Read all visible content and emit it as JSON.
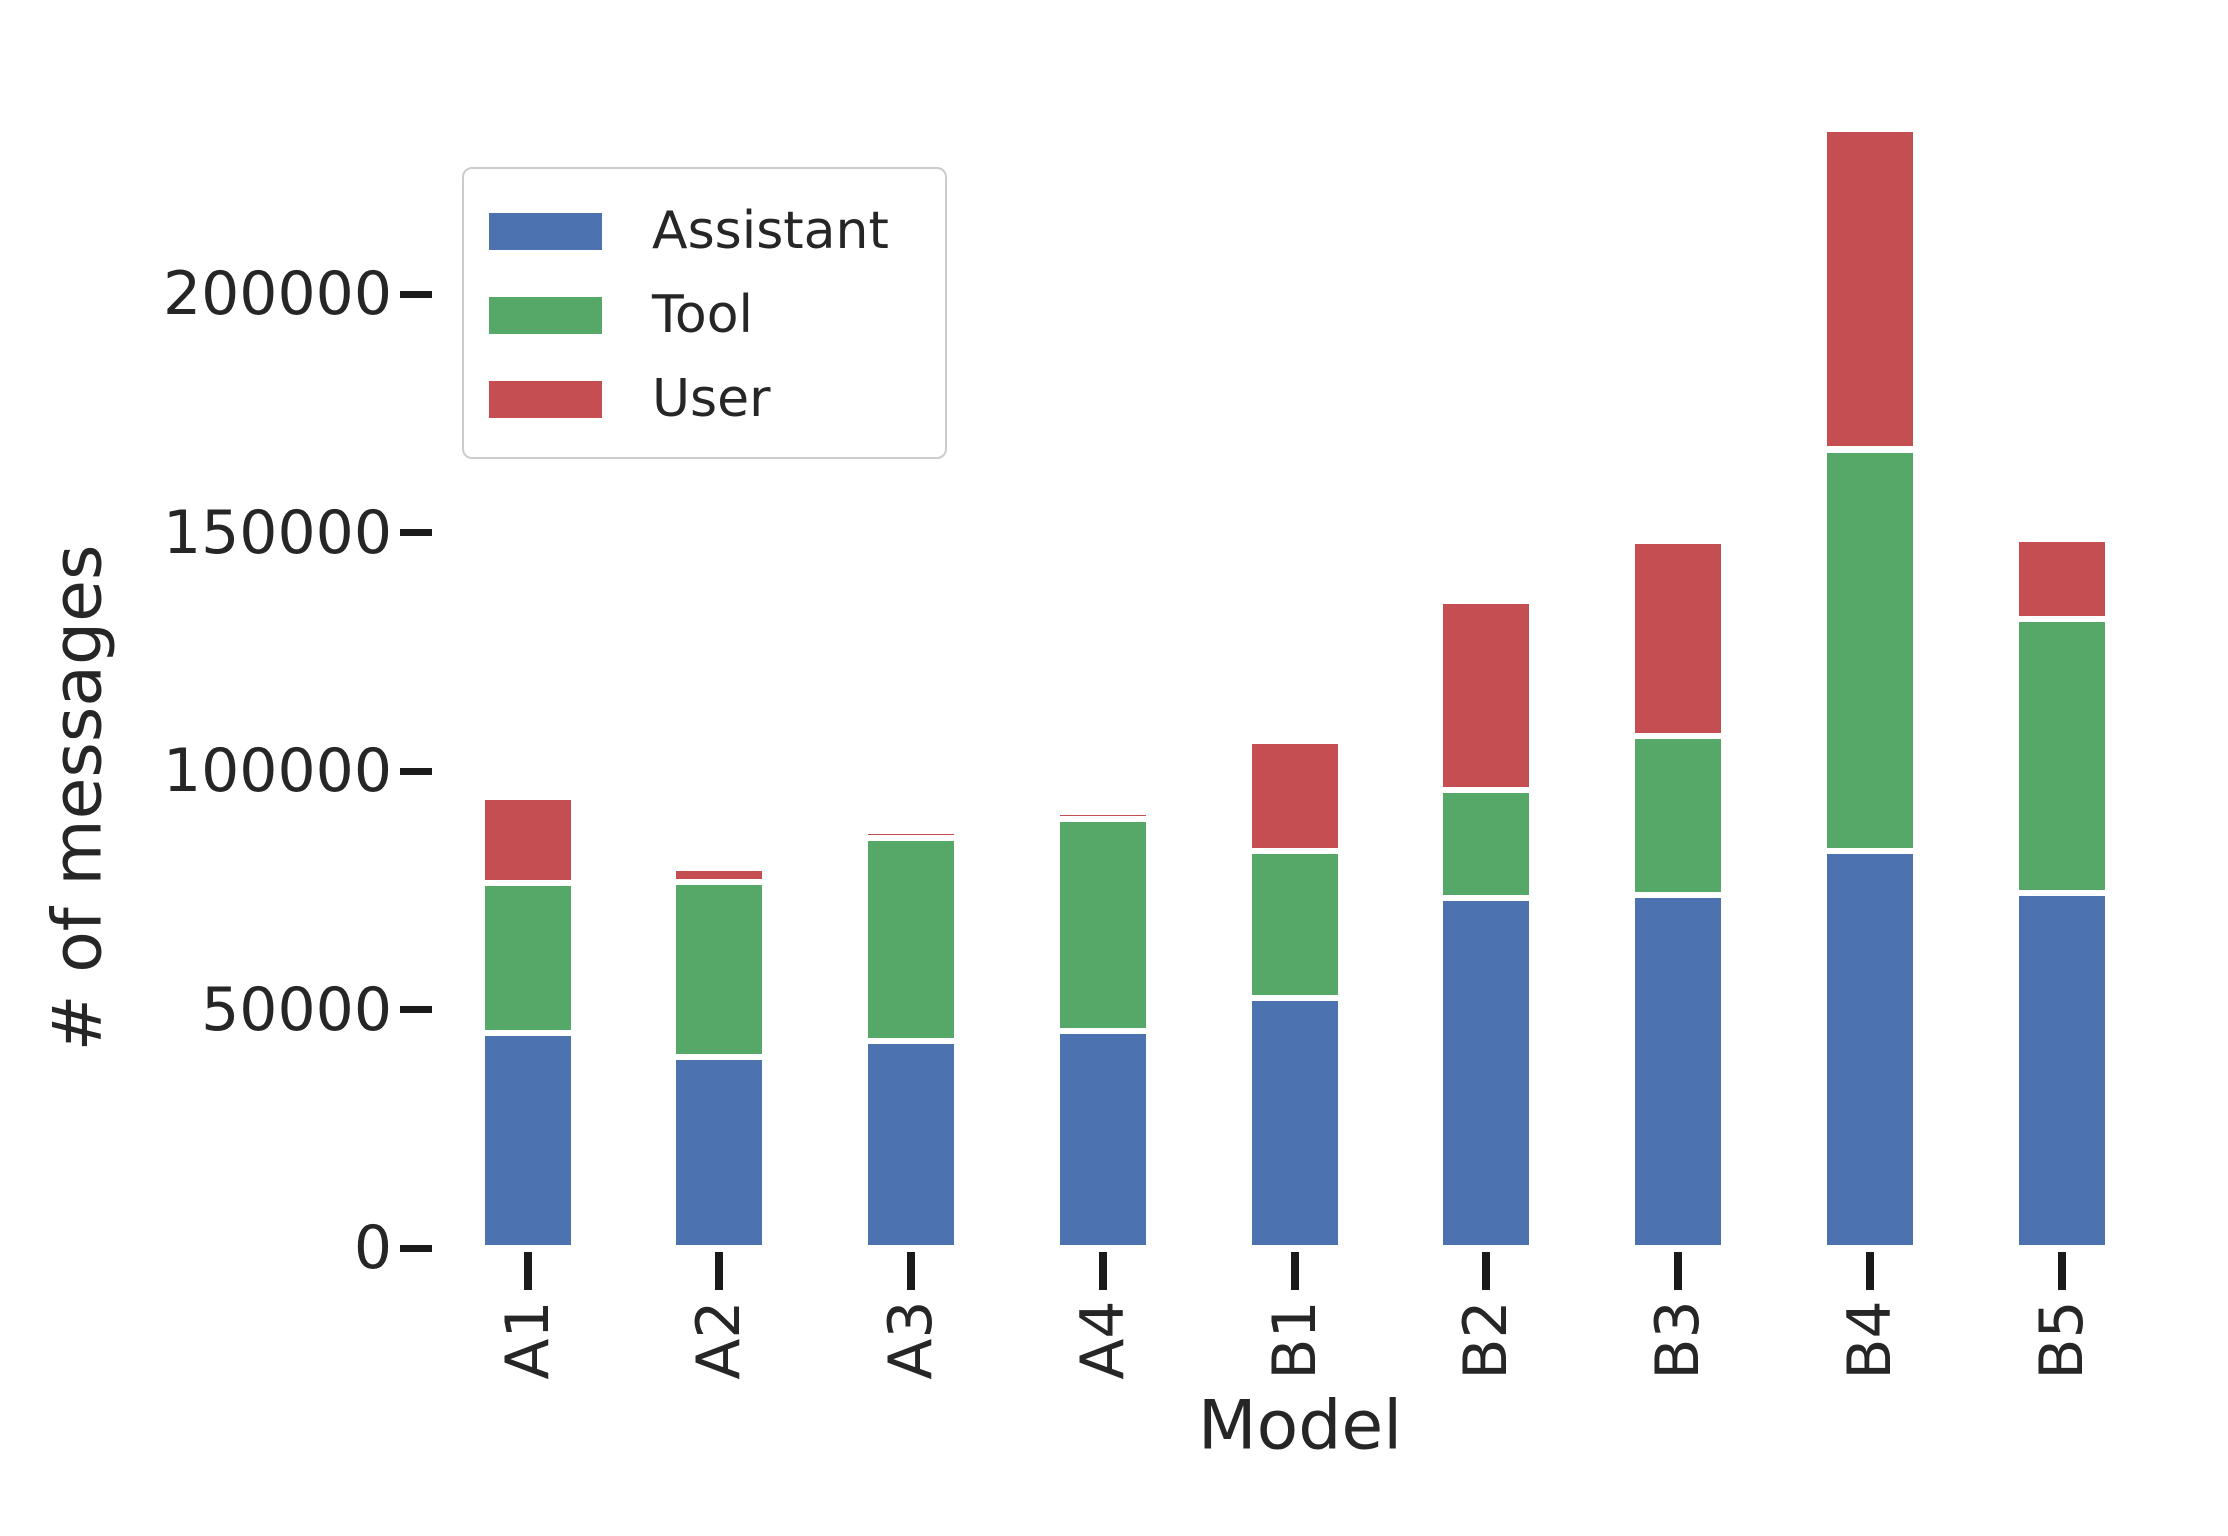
{
  "chart_data": {
    "type": "bar",
    "stacked": true,
    "title": "",
    "xlabel": "Model",
    "ylabel": "# of messages",
    "categories": [
      "A1",
      "A2",
      "A3",
      "A4",
      "B1",
      "B2",
      "B3",
      "B4",
      "B5"
    ],
    "series": [
      {
        "name": "Assistant",
        "color": "#4C72B0",
        "values": [
          45000,
          40000,
          43300,
          45400,
          52500,
          73400,
          74100,
          83300,
          74500
        ]
      },
      {
        "name": "Tool",
        "color": "#55A868",
        "values": [
          31500,
          36800,
          42700,
          44600,
          30800,
          22600,
          33300,
          84100,
          57300
        ]
      },
      {
        "name": "User",
        "color": "#C44E52",
        "values": [
          18000,
          2900,
          1500,
          1300,
          22900,
          39600,
          40800,
          67100,
          16800
        ]
      }
    ],
    "totals": [
      94500,
      79700,
      87500,
      91300,
      106200,
      135600,
      148200,
      234500,
      148600
    ],
    "y_ticks": [
      0,
      50000,
      100000,
      150000,
      200000
    ],
    "ylim": [
      0,
      240000
    ],
    "grid": false,
    "legend_position": "upper left",
    "bar_edge_color": "#ffffff",
    "background_color": "#ffffff",
    "tick_color": "#1a1a1a",
    "text_color": "#262626"
  }
}
